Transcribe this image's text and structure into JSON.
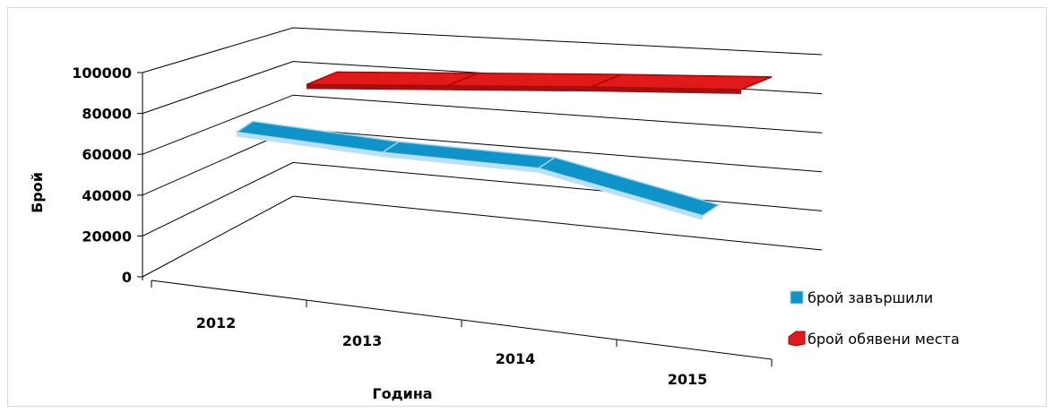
{
  "chart_data": {
    "type": "line",
    "categories": [
      "2012",
      "2013",
      "2014",
      "2015"
    ],
    "series": [
      {
        "name": "брой завършили",
        "values": [
          53000,
          44000,
          37000,
          16000
        ],
        "color": "#0e94c8"
      },
      {
        "name": "брой обявени места",
        "values": [
          80000,
          79000,
          78000,
          76000
        ],
        "color": "#e11919"
      }
    ],
    "xlabel": "Година",
    "ylabel": "Брой",
    "ylim": [
      0,
      100000
    ],
    "yticks": [
      "0",
      "20000",
      "40000",
      "60000",
      "80000",
      "100000"
    ],
    "grid": true,
    "legend_position": "right"
  }
}
